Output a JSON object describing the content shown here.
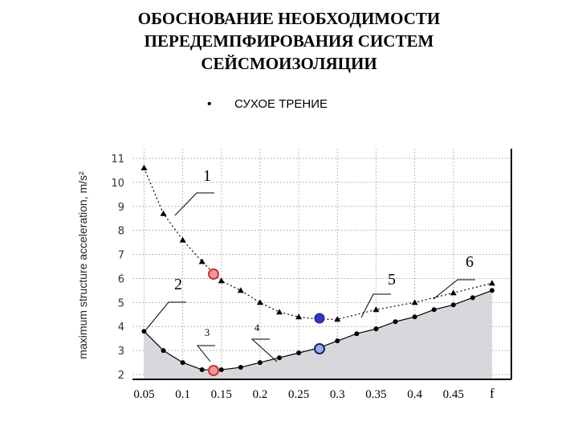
{
  "chart_data": {
    "type": "line",
    "title": [
      "ОБОСНОВАНИЕ НЕОБХОДИМОСТИ",
      "ПЕРЕДЕМПФИРОВАНИЯ СИСТЕМ",
      "СЕЙСМОИЗОЛЯЦИИ"
    ],
    "subtitle": "СУХОЕ ТРЕНИЕ",
    "y_label": "maximum structure acceleration, m/s²",
    "x_label": "f",
    "xlim": [
      0.035,
      0.525
    ],
    "ylim": [
      1.8,
      11.4
    ],
    "xticks": [
      0.05,
      0.1,
      0.15,
      0.2,
      0.25,
      0.3,
      0.35,
      0.4,
      0.45
    ],
    "yticks": [
      2,
      3,
      4,
      5,
      6,
      7,
      8,
      9,
      10,
      11
    ],
    "grid": true,
    "annotations": [
      "1",
      "2",
      "3",
      "4",
      "5",
      "6"
    ],
    "series": [
      {
        "marker": "triangle",
        "color": "#000000",
        "dash": true,
        "x": [
          0.05,
          0.075,
          0.1,
          0.125,
          0.15,
          0.175,
          0.2,
          0.225,
          0.25,
          0.275,
          0.3,
          0.35,
          0.4,
          0.45,
          0.5
        ],
        "values": [
          10.6,
          8.7,
          7.6,
          6.7,
          5.9,
          5.5,
          5.0,
          4.6,
          4.4,
          4.3,
          4.3,
          4.7,
          5.0,
          5.4,
          5.8
        ]
      },
      {
        "marker": "circle",
        "color": "#000000",
        "dash": false,
        "x": [
          0.05,
          0.075,
          0.1,
          0.125,
          0.15,
          0.175,
          0.2,
          0.225,
          0.25,
          0.275,
          0.3,
          0.325,
          0.35,
          0.375,
          0.4,
          0.425,
          0.45,
          0.475,
          0.5
        ],
        "values": [
          3.8,
          3.0,
          2.5,
          2.2,
          2.2,
          2.3,
          2.5,
          2.7,
          2.9,
          3.1,
          3.4,
          3.7,
          3.9,
          4.2,
          4.4,
          4.7,
          4.9,
          5.2,
          5.5
        ]
      }
    ]
  }
}
